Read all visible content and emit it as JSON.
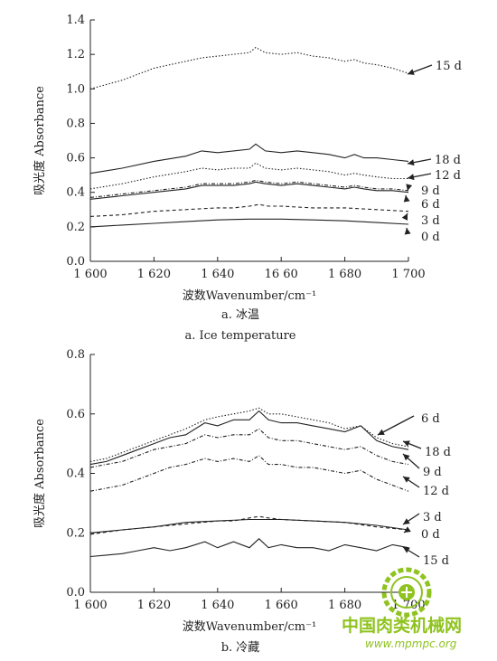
{
  "charts": [
    {
      "type": "line",
      "xlabel": "波数Wavenumber/cm⁻¹",
      "ylabel": "吸光度 Absorbance",
      "caption_cn": "a. 冰温",
      "caption_en": "a. Ice temperature",
      "xlim": [
        1600,
        1700
      ],
      "ylim": [
        0.0,
        1.4
      ],
      "xticks": [
        1600,
        1620,
        1640,
        1660,
        1680,
        1700
      ],
      "xtick_labels": [
        "1 600",
        "1 620",
        "1 640",
        "16 60",
        "1 680",
        "1 700"
      ],
      "yticks": [
        0.0,
        0.2,
        0.4,
        0.6,
        0.8,
        1.0,
        1.2,
        1.4
      ],
      "ytick_labels": [
        "0.0",
        "0.2",
        "0.4",
        "0.6",
        "0.8",
        "1.0",
        "1.2",
        "1.4"
      ],
      "series": [
        {
          "name": "15 d",
          "dash": "1.5,2",
          "x": [
            1600,
            1610,
            1620,
            1630,
            1635,
            1640,
            1645,
            1650,
            1652,
            1655,
            1660,
            1665,
            1670,
            1675,
            1680,
            1683,
            1686,
            1690,
            1695,
            1700
          ],
          "y": [
            1.0,
            1.05,
            1.12,
            1.16,
            1.18,
            1.19,
            1.2,
            1.21,
            1.24,
            1.21,
            1.2,
            1.21,
            1.19,
            1.18,
            1.16,
            1.17,
            1.15,
            1.14,
            1.12,
            1.09
          ]
        },
        {
          "name": "18 d",
          "dash": "",
          "x": [
            1600,
            1610,
            1620,
            1630,
            1635,
            1640,
            1645,
            1650,
            1652,
            1655,
            1660,
            1665,
            1670,
            1675,
            1680,
            1683,
            1686,
            1690,
            1695,
            1700
          ],
          "y": [
            0.51,
            0.54,
            0.58,
            0.61,
            0.64,
            0.63,
            0.64,
            0.65,
            0.68,
            0.64,
            0.63,
            0.64,
            0.63,
            0.62,
            0.6,
            0.62,
            0.6,
            0.6,
            0.59,
            0.58
          ]
        },
        {
          "name": "12 d",
          "dash": "1.5,2",
          "x": [
            1600,
            1610,
            1620,
            1630,
            1635,
            1640,
            1645,
            1650,
            1652,
            1655,
            1660,
            1665,
            1670,
            1675,
            1680,
            1683,
            1686,
            1690,
            1695,
            1700
          ],
          "y": [
            0.42,
            0.45,
            0.49,
            0.52,
            0.54,
            0.53,
            0.54,
            0.54,
            0.57,
            0.54,
            0.53,
            0.54,
            0.53,
            0.52,
            0.5,
            0.51,
            0.5,
            0.49,
            0.48,
            0.48
          ]
        },
        {
          "name": "9 d",
          "dash": "4,2,1,2",
          "x": [
            1600,
            1610,
            1620,
            1630,
            1635,
            1640,
            1645,
            1650,
            1652,
            1655,
            1660,
            1665,
            1670,
            1675,
            1680,
            1683,
            1686,
            1690,
            1695,
            1700
          ],
          "y": [
            0.37,
            0.39,
            0.41,
            0.43,
            0.45,
            0.45,
            0.45,
            0.46,
            0.47,
            0.46,
            0.45,
            0.46,
            0.45,
            0.44,
            0.43,
            0.44,
            0.43,
            0.42,
            0.42,
            0.41
          ]
        },
        {
          "name": "6 d",
          "dash": "",
          "x": [
            1600,
            1610,
            1620,
            1630,
            1635,
            1640,
            1645,
            1650,
            1652,
            1655,
            1660,
            1665,
            1670,
            1675,
            1680,
            1683,
            1686,
            1690,
            1695,
            1700
          ],
          "y": [
            0.36,
            0.38,
            0.4,
            0.42,
            0.44,
            0.44,
            0.44,
            0.45,
            0.46,
            0.45,
            0.44,
            0.45,
            0.44,
            0.43,
            0.42,
            0.43,
            0.42,
            0.41,
            0.41,
            0.4
          ]
        },
        {
          "name": "3 d",
          "dash": "4,3",
          "x": [
            1600,
            1610,
            1620,
            1630,
            1640,
            1645,
            1650,
            1653,
            1656,
            1660,
            1670,
            1680,
            1690,
            1700
          ],
          "y": [
            0.26,
            0.27,
            0.29,
            0.3,
            0.31,
            0.31,
            0.32,
            0.33,
            0.32,
            0.32,
            0.31,
            0.31,
            0.3,
            0.29
          ]
        },
        {
          "name": "0 d",
          "dash": "",
          "x": [
            1600,
            1610,
            1620,
            1630,
            1640,
            1650,
            1655,
            1660,
            1670,
            1680,
            1690,
            1700
          ],
          "y": [
            0.2,
            0.21,
            0.22,
            0.23,
            0.24,
            0.245,
            0.245,
            0.245,
            0.24,
            0.235,
            0.225,
            0.215
          ]
        }
      ]
    },
    {
      "type": "line",
      "xlabel": "波数Wavenumber/cm⁻¹",
      "ylabel": "吸光度 Absorbance",
      "caption_cn": "b. 冷藏",
      "caption_en": "",
      "xlim": [
        1600,
        1700
      ],
      "ylim": [
        0.0,
        0.8
      ],
      "xticks": [
        1600,
        1620,
        1640,
        1660,
        1680,
        1700
      ],
      "xtick_labels": [
        "1 600",
        "1 620",
        "1 640",
        "1 660",
        "1 680",
        "1 700"
      ],
      "yticks": [
        0.0,
        0.2,
        0.4,
        0.6,
        0.8
      ],
      "ytick_labels": [
        "0.0",
        "0.2",
        "0.4",
        "0.6",
        "0.8"
      ],
      "series": [
        {
          "name": "6 d",
          "dash": "1.5,2",
          "x": [
            1600,
            1605,
            1610,
            1615,
            1620,
            1625,
            1630,
            1636,
            1640,
            1645,
            1650,
            1653,
            1656,
            1660,
            1665,
            1670,
            1675,
            1680,
            1685,
            1690,
            1695,
            1700
          ],
          "y": [
            0.44,
            0.45,
            0.47,
            0.49,
            0.51,
            0.53,
            0.55,
            0.58,
            0.59,
            0.6,
            0.61,
            0.62,
            0.6,
            0.6,
            0.59,
            0.58,
            0.57,
            0.55,
            0.56,
            0.52,
            0.5,
            0.49
          ]
        },
        {
          "name": "18 d",
          "dash": "",
          "x": [
            1600,
            1605,
            1610,
            1615,
            1620,
            1625,
            1630,
            1636,
            1640,
            1645,
            1650,
            1653,
            1656,
            1660,
            1665,
            1670,
            1675,
            1680,
            1685,
            1690,
            1695,
            1700
          ],
          "y": [
            0.43,
            0.44,
            0.46,
            0.48,
            0.5,
            0.52,
            0.53,
            0.57,
            0.56,
            0.58,
            0.58,
            0.61,
            0.58,
            0.57,
            0.57,
            0.56,
            0.55,
            0.54,
            0.56,
            0.51,
            0.49,
            0.48
          ]
        },
        {
          "name": "9 d",
          "dash": "4,2,1,2",
          "x": [
            1600,
            1605,
            1610,
            1615,
            1620,
            1625,
            1630,
            1636,
            1640,
            1645,
            1650,
            1653,
            1656,
            1660,
            1665,
            1670,
            1675,
            1680,
            1685,
            1690,
            1695,
            1700
          ],
          "y": [
            0.42,
            0.43,
            0.44,
            0.46,
            0.48,
            0.49,
            0.5,
            0.53,
            0.52,
            0.53,
            0.53,
            0.55,
            0.52,
            0.51,
            0.51,
            0.5,
            0.49,
            0.48,
            0.49,
            0.46,
            0.44,
            0.43
          ]
        },
        {
          "name": "12 d",
          "dash": "4,2,1,2",
          "x": [
            1600,
            1605,
            1610,
            1615,
            1620,
            1625,
            1630,
            1636,
            1640,
            1645,
            1650,
            1653,
            1656,
            1660,
            1665,
            1670,
            1675,
            1680,
            1685,
            1690,
            1695,
            1700
          ],
          "y": [
            0.34,
            0.35,
            0.36,
            0.38,
            0.4,
            0.42,
            0.43,
            0.45,
            0.44,
            0.45,
            0.44,
            0.46,
            0.43,
            0.43,
            0.42,
            0.42,
            0.41,
            0.4,
            0.41,
            0.38,
            0.36,
            0.34
          ]
        },
        {
          "name": "3 d",
          "dash": "4,3",
          "x": [
            1600,
            1610,
            1620,
            1630,
            1640,
            1645,
            1650,
            1653,
            1656,
            1660,
            1670,
            1680,
            1690,
            1700
          ],
          "y": [
            0.195,
            0.21,
            0.22,
            0.23,
            0.24,
            0.24,
            0.25,
            0.255,
            0.25,
            0.245,
            0.24,
            0.235,
            0.22,
            0.21
          ]
        },
        {
          "name": "0 d",
          "dash": "",
          "x": [
            1600,
            1610,
            1620,
            1630,
            1640,
            1650,
            1660,
            1670,
            1680,
            1690,
            1700
          ],
          "y": [
            0.2,
            0.21,
            0.22,
            0.235,
            0.24,
            0.245,
            0.245,
            0.24,
            0.235,
            0.225,
            0.21
          ]
        },
        {
          "name": "15 d",
          "dash": "",
          "x": [
            1600,
            1605,
            1610,
            1615,
            1620,
            1625,
            1630,
            1636,
            1640,
            1645,
            1650,
            1653,
            1656,
            1660,
            1665,
            1670,
            1675,
            1680,
            1685,
            1690,
            1695,
            1700
          ],
          "y": [
            0.12,
            0.125,
            0.13,
            0.14,
            0.15,
            0.14,
            0.15,
            0.17,
            0.15,
            0.17,
            0.15,
            0.18,
            0.15,
            0.16,
            0.15,
            0.15,
            0.14,
            0.16,
            0.15,
            0.14,
            0.16,
            0.15
          ]
        }
      ]
    }
  ],
  "watermark": {
    "text_cn": "中国肉类机械网",
    "url": "www.mpmpc.org",
    "accent": "#8fc31f"
  }
}
